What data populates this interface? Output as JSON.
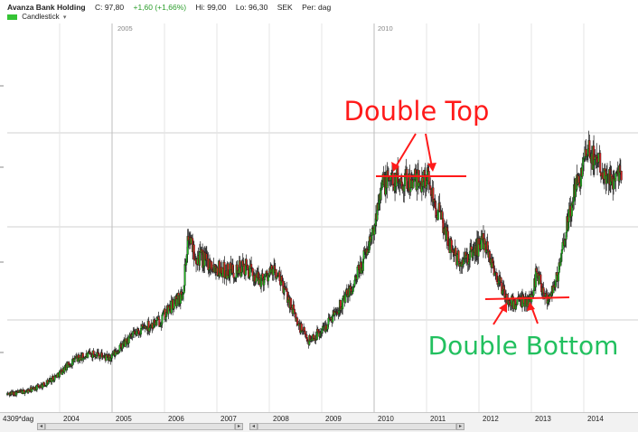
{
  "header": {
    "name": "Avanza Bank Holding",
    "close": "C: 97,80",
    "change": "+1,60 (+1,66%)",
    "high": "Hi: 99,00",
    "low": "Lo: 96,30",
    "currency": "SEK",
    "period": "Per: dag",
    "chart_style": "Candlestick"
  },
  "axis_footer": {
    "left_label": "4309*dag",
    "years": [
      "2004",
      "2005",
      "2006",
      "2007",
      "2008",
      "2009",
      "2010",
      "2011",
      "2012",
      "2013",
      "2014"
    ],
    "top_markers": [
      "2005",
      "2010"
    ]
  },
  "colors": {
    "up": "#22b322",
    "down": "#cc2222",
    "annotation": "#ff1a1a",
    "bottom_label": "#22c05f",
    "grid": "#d0d0d0"
  },
  "chart_data": {
    "type": "candlestick",
    "series_trend": {
      "x": [
        2003.0,
        2003.4,
        2003.7,
        2003.95,
        2004.3,
        2004.7,
        2004.95,
        2005.3,
        2005.6,
        2005.9,
        2006.15,
        2006.35,
        2006.45,
        2006.6,
        2006.8,
        2007.1,
        2007.3,
        2007.55,
        2007.8,
        2008.1,
        2008.35,
        2008.55,
        2008.75,
        2009.0,
        2009.3,
        2009.6,
        2009.85,
        2010.0,
        2010.1,
        2010.3,
        2010.5,
        2010.8,
        2011.0,
        2011.2,
        2011.45,
        2011.65,
        2011.9,
        2012.1,
        2012.3,
        2012.55,
        2012.8,
        2013.0,
        2013.1,
        2013.3,
        2013.5,
        2013.7,
        2013.9,
        2014.1,
        2014.3,
        2014.5,
        2014.65
      ],
      "y": [
        2,
        3,
        5,
        8,
        13,
        15,
        13,
        19,
        23,
        25,
        30,
        34,
        52,
        46,
        44,
        41,
        41,
        42,
        38,
        41,
        33,
        24,
        19,
        22,
        29,
        36,
        47,
        54,
        67,
        70,
        70,
        69,
        71,
        61,
        49,
        43,
        47,
        51,
        41,
        31,
        31,
        32,
        41,
        32,
        39,
        57,
        70,
        78,
        76,
        69,
        73
      ]
    },
    "candles": [],
    "annotations": [
      "Double Top",
      "Double Bottom"
    ],
    "xlabels": [
      "2004",
      "2005",
      "2006",
      "2007",
      "2008",
      "2009",
      "2010",
      "2011",
      "2012",
      "2013",
      "2014"
    ]
  }
}
